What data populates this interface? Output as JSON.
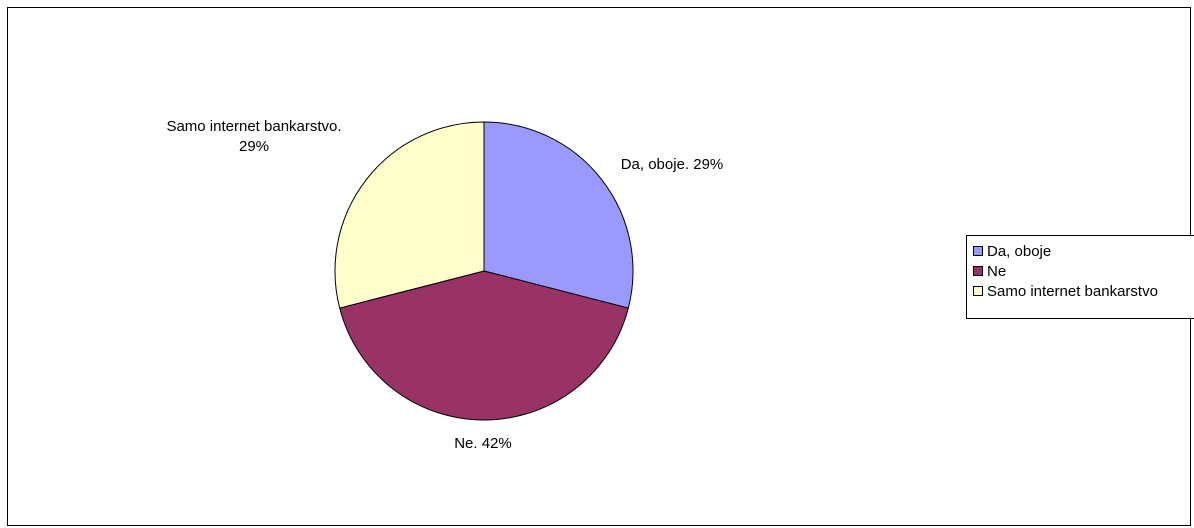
{
  "chart_data": {
    "type": "pie",
    "title": "",
    "categories": [
      "Da, oboje",
      "Ne",
      "Samo internet bankarstvo"
    ],
    "values": [
      29,
      42,
      29
    ],
    "unit": "%",
    "colors": [
      "#9999ff",
      "#993366",
      "#ffffcc"
    ],
    "data_labels": [
      [
        "Da, oboje. 29%"
      ],
      [
        "Ne. 42%"
      ],
      [
        "Samo internet bankarstvo.",
        "29%"
      ]
    ],
    "legend": {
      "placement": "right",
      "entries": [
        "Da, oboje",
        "Ne",
        "Samo internet bankarstvo"
      ]
    },
    "start_angle": "12 o'clock",
    "direction": "clockwise"
  }
}
